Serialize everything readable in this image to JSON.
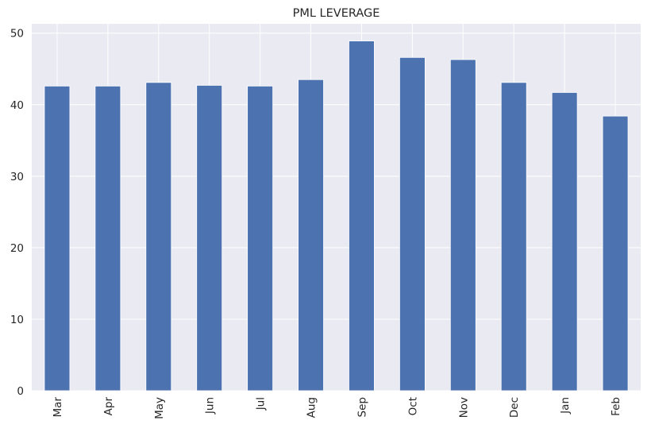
{
  "chart_data": {
    "type": "bar",
    "title": "PML LEVERAGE",
    "xlabel": "",
    "ylabel": "",
    "categories": [
      "Mar",
      "Apr",
      "May",
      "Jun",
      "Jul",
      "Aug",
      "Sep",
      "Oct",
      "Nov",
      "Dec",
      "Jan",
      "Feb"
    ],
    "values": [
      42.6,
      42.6,
      43.1,
      42.7,
      42.6,
      43.5,
      48.9,
      46.6,
      46.3,
      43.1,
      41.7,
      38.4
    ],
    "ylim": [
      0,
      51.3
    ],
    "yticks": [
      0,
      10,
      20,
      30,
      40,
      50
    ],
    "grid": true,
    "x_tick_rotation": "vertical",
    "colors": {
      "bar": "#4c72b0",
      "background": "#eaeaf2",
      "grid": "#ffffff",
      "text": "#262626"
    }
  }
}
